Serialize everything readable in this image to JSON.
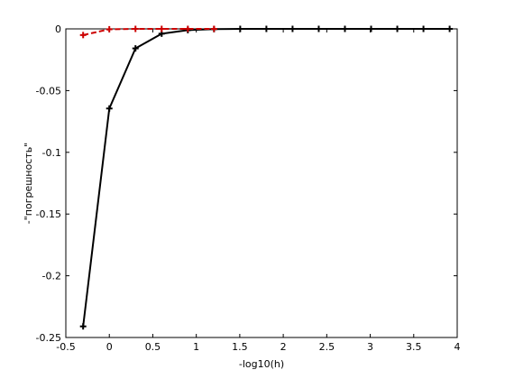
{
  "chart_data": {
    "type": "line",
    "title": "",
    "xlabel": "-log10(h)",
    "ylabel": "-\"погрешность\"",
    "xlim": [
      -0.5,
      4
    ],
    "ylim": [
      -0.25,
      0
    ],
    "xticks": [
      -0.5,
      0,
      0.5,
      1,
      1.5,
      2,
      2.5,
      3,
      3.5,
      4
    ],
    "xtick_labels": [
      "-0.5",
      "0",
      "0.5",
      "1",
      "1.5",
      "2",
      "2.5",
      "3",
      "3.5",
      "4"
    ],
    "yticks": [
      -0.25,
      -0.2,
      -0.15,
      -0.1,
      -0.05,
      0
    ],
    "ytick_labels": [
      "-0.25",
      "-0.2",
      "-0.15",
      "-0.1",
      "-0.05",
      "0"
    ],
    "grid": false,
    "legend": "none",
    "series": [
      {
        "color": "#000000",
        "line_style": "solid",
        "marker": "plus",
        "x": [
          -0.301,
          0,
          0.301,
          0.602,
          0.903,
          1.204,
          1.505,
          1.806,
          2.107,
          2.408,
          2.709,
          3.01,
          3.311,
          3.612,
          3.913
        ],
        "y": [
          -0.241,
          -0.0645,
          -0.0158,
          -0.0039,
          -0.001,
          -0.0002,
          0,
          0,
          0,
          0,
          0,
          0,
          0,
          0,
          0
        ]
      },
      {
        "color": "#cc0000",
        "line_style": "dashed",
        "marker": "plus",
        "x": [
          -0.301,
          0,
          0.301,
          0.602,
          0.903,
          1.204
        ],
        "y": [
          -0.005,
          -0.0003,
          0,
          0,
          0,
          0
        ]
      }
    ]
  }
}
